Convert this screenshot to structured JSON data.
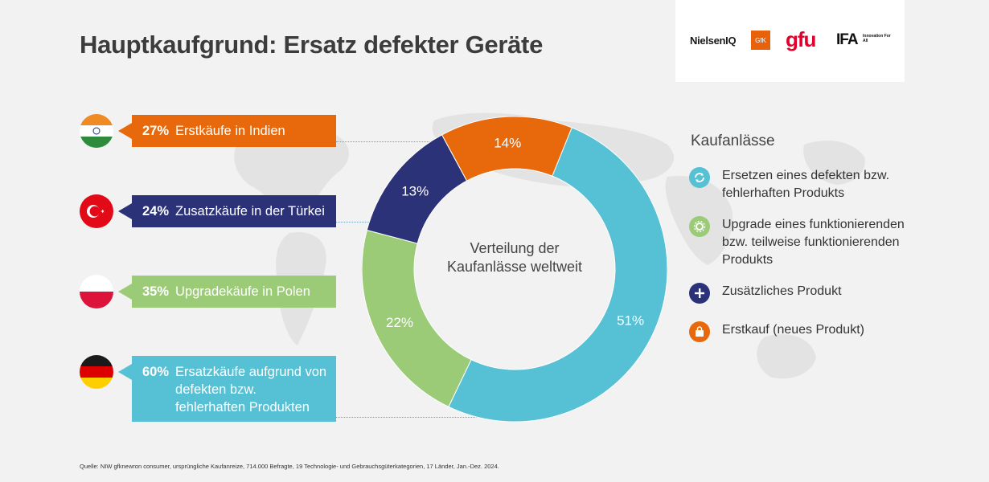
{
  "title": "Hauptkaufgrund: Ersatz defekter Geräte",
  "logos": {
    "nielseniq": "NielsenIQ",
    "gfk": "GfK",
    "gfu": "gfu",
    "ifa": "IFA",
    "ifa_tagline": "Innovation For All"
  },
  "callouts": [
    {
      "percent": "27%",
      "text": "Erstkäufe in Indien",
      "color": "#e8690b",
      "flag": "india-flag-icon"
    },
    {
      "percent": "24%",
      "text": "Zusatzkäufe in der Türkei",
      "color": "#2b3277",
      "flag": "turkey-flag-icon"
    },
    {
      "percent": "35%",
      "text": "Upgradekäufe in Polen",
      "color": "#9bcb77",
      "flag": "poland-flag-icon"
    },
    {
      "percent": "60%",
      "text": "Ersatzkäufe aufgrund von defekten bzw. fehlerhaften Produkten",
      "color": "#56c0d4",
      "flag": "germany-flag-icon"
    }
  ],
  "center_label": "Verteilung der Kaufanlässe weltweit",
  "legend": {
    "title": "Kaufanlässe",
    "items": [
      {
        "label": "Ersetzen eines defekten bzw. fehlerhaften Produkts",
        "color": "#56c0d4",
        "icon": "refresh-icon"
      },
      {
        "label": "Upgrade eines funktionierenden bzw. teilweise funktionierenden Produkts",
        "color": "#9bcb77",
        "icon": "gear-upgrade-icon"
      },
      {
        "label": "Zusätzliches Produkt",
        "color": "#2b3277",
        "icon": "plus-icon"
      },
      {
        "label": "Erstkauf (neues Produkt)",
        "color": "#e8690b",
        "icon": "shopping-bag-icon"
      }
    ]
  },
  "source": "Quelle: NIW gfknewron consumer, ursprüngliche Kaufanreize, 714.000 Befragte, 19 Technologie- und Gebrauchsgüterkategorien, 17 Länder, Jan.-Dez. 2024.",
  "chart_data": {
    "type": "pie",
    "donut": true,
    "categories": [
      "Ersetzen eines defekten bzw. fehlerhaften Produkts",
      "Upgrade eines funktionierenden bzw. teilweise funktionierenden Produkts",
      "Zusätzliches Produkt",
      "Erstkauf (neues Produkt)"
    ],
    "values": [
      51,
      22,
      13,
      14
    ],
    "labels": [
      "51%",
      "22%",
      "13%",
      "14%"
    ],
    "colors": [
      "#56c0d4",
      "#9bcb77",
      "#2b3277",
      "#e8690b"
    ],
    "title": "Verteilung der Kaufanlässe weltweit"
  }
}
